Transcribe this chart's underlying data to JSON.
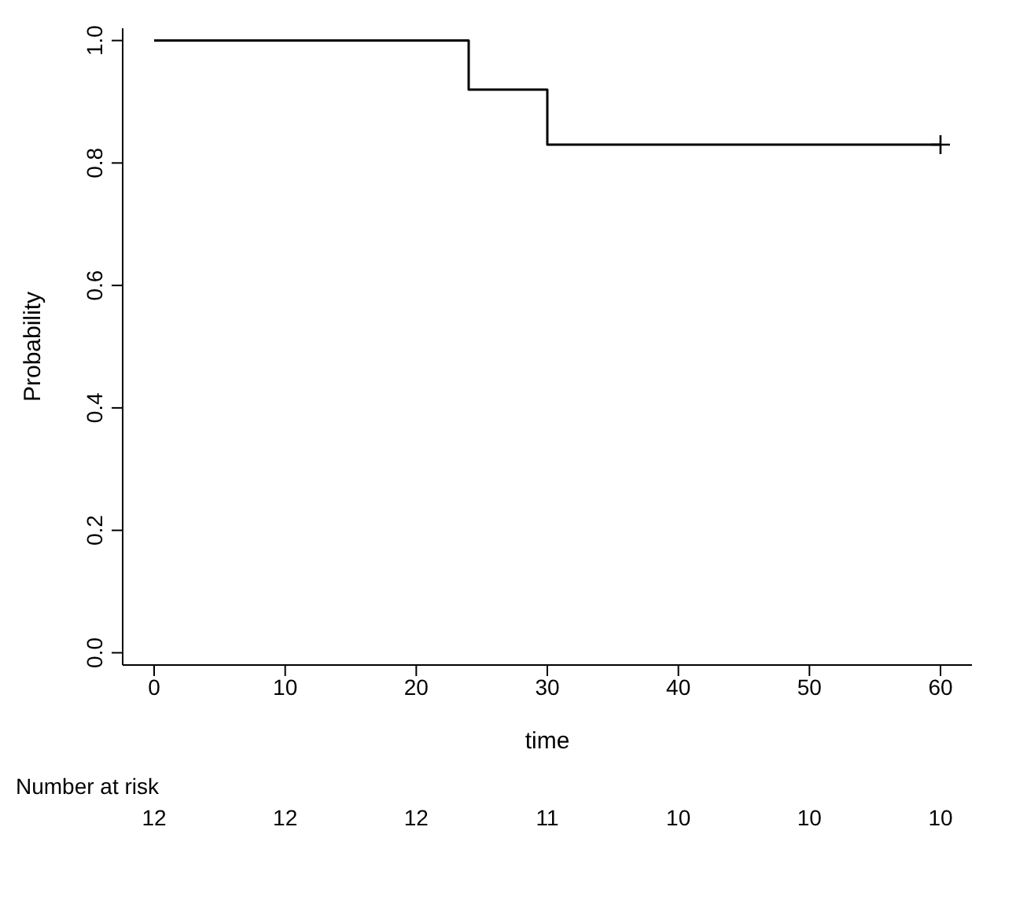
{
  "chart_data": {
    "type": "step",
    "xlabel": "time",
    "ylabel": "Probability",
    "series": [
      {
        "color": "#000000",
        "x": [
          0,
          24,
          30,
          60
        ],
        "values": [
          1.0,
          0.92,
          0.83,
          0.83
        ]
      },
      {
        "type": "scatter",
        "color": "#000000",
        "marker": "cross",
        "x": [
          60
        ],
        "values": [
          0.83
        ]
      }
    ],
    "xlim": [
      -2.4,
      62.4
    ],
    "xticks": [
      0,
      10,
      20,
      30,
      40,
      50,
      60
    ],
    "ylim": [
      -0.02,
      1.02
    ],
    "yticks": [
      {
        "value": 0,
        "label": "0.0"
      },
      0.2,
      0.4,
      0.6,
      0.8,
      {
        "value": 1,
        "label": "1.0"
      }
    ],
    "grid": false,
    "annotations": [
      "Number at risk",
      "12",
      "12",
      "12",
      "11",
      "10",
      "10",
      "10"
    ]
  }
}
